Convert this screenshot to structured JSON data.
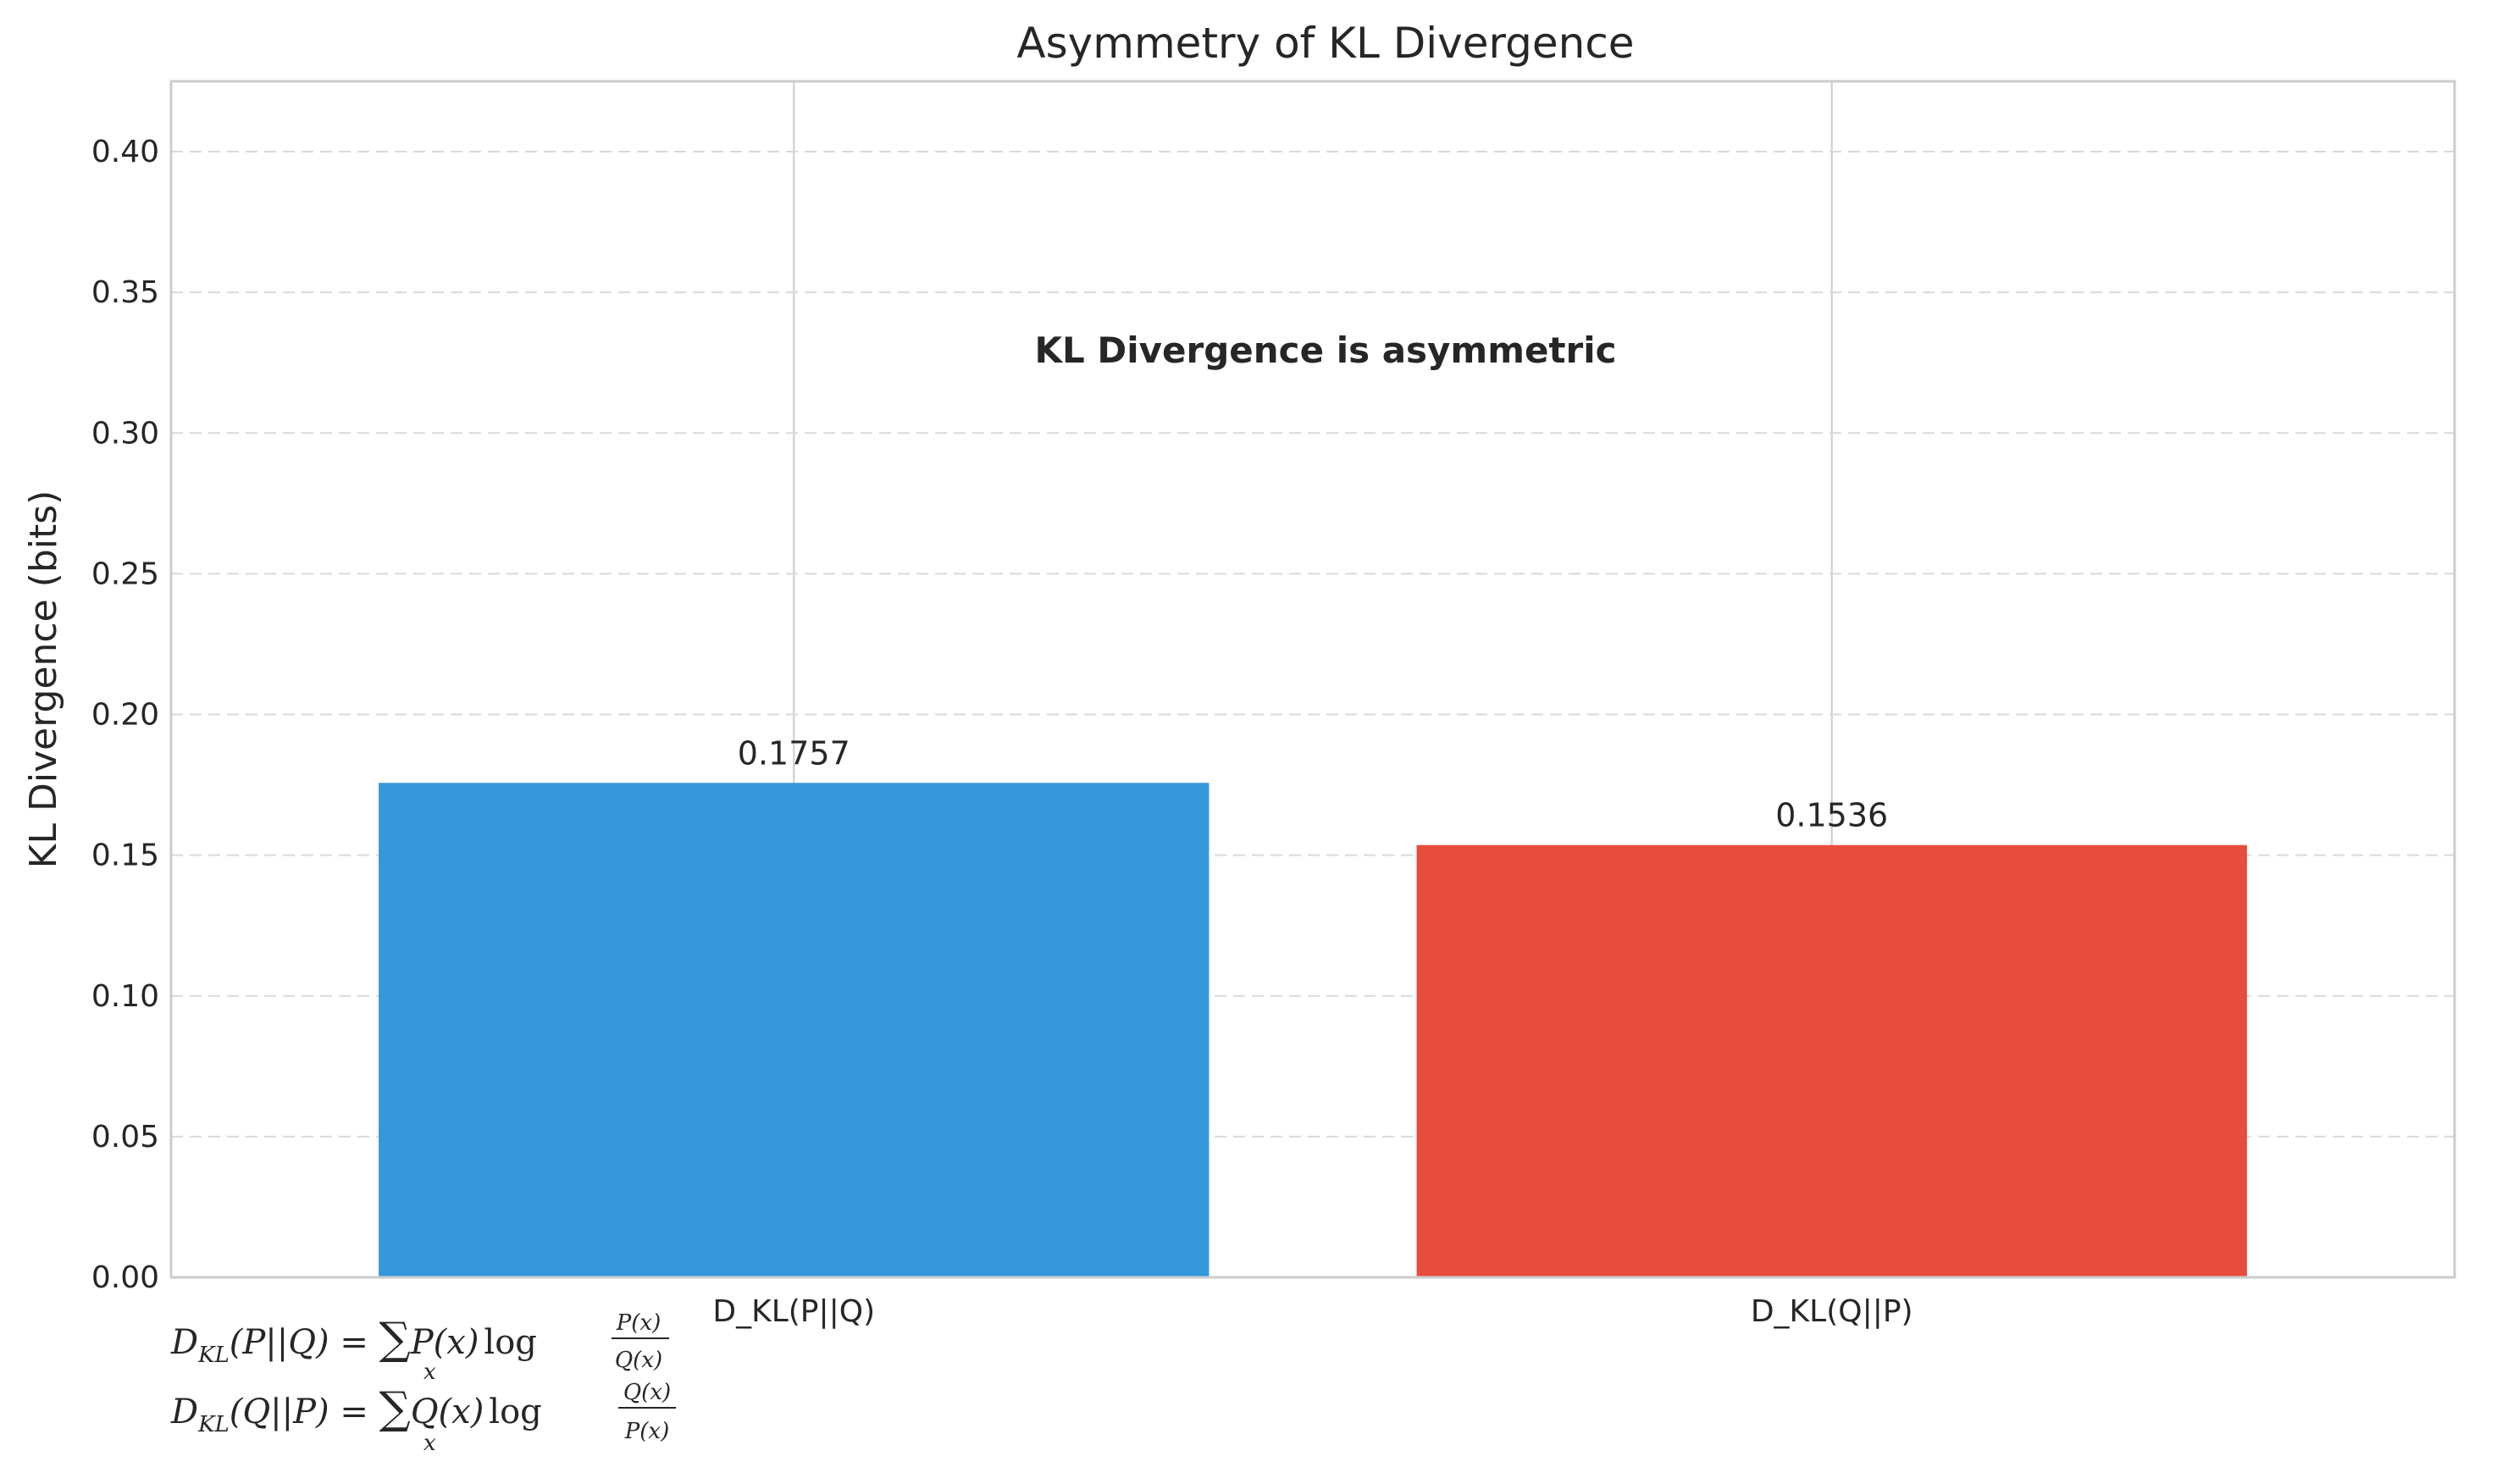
{
  "chart_data": {
    "type": "bar",
    "title": "Asymmetry of KL Divergence",
    "xlabel": "",
    "ylabel": "KL Divergence (bits)",
    "categories": [
      "D_KL(P||Q)",
      "D_KL(Q||P)"
    ],
    "values": [
      0.1757,
      0.1536
    ],
    "value_labels": [
      "0.1757",
      "0.1536"
    ],
    "colors": [
      "#3498db",
      "#e74c3c"
    ],
    "ylim": [
      0,
      0.425
    ],
    "yticks": [
      0.0,
      0.05,
      0.1,
      0.15,
      0.2,
      0.25,
      0.3,
      0.35,
      0.4
    ],
    "ytick_labels": [
      "0.00",
      "0.05",
      "0.10",
      "0.15",
      "0.20",
      "0.25",
      "0.30",
      "0.35",
      "0.40"
    ],
    "grid": {
      "y": "dashed",
      "x": "solid"
    },
    "annotation": "KL Divergence is asymmetric"
  },
  "formulas": {
    "pq": {
      "lhs": "D",
      "sub": "KL",
      "args": "(P||Q) = ",
      "sum": "∑",
      "sum_sub": "x",
      "term": "P(x)",
      "log": "log",
      "num": "P(x)",
      "den": "Q(x)"
    },
    "qp": {
      "lhs": "D",
      "sub": "KL",
      "args": "(Q||P) = ",
      "sum": "∑",
      "sum_sub": "x",
      "term": "Q(x)",
      "log": "log",
      "num": "Q(x)",
      "den": "P(x)"
    }
  },
  "colors": {
    "axis": "#cccccc",
    "grid": "#d9d9d9",
    "text": "#262626"
  }
}
